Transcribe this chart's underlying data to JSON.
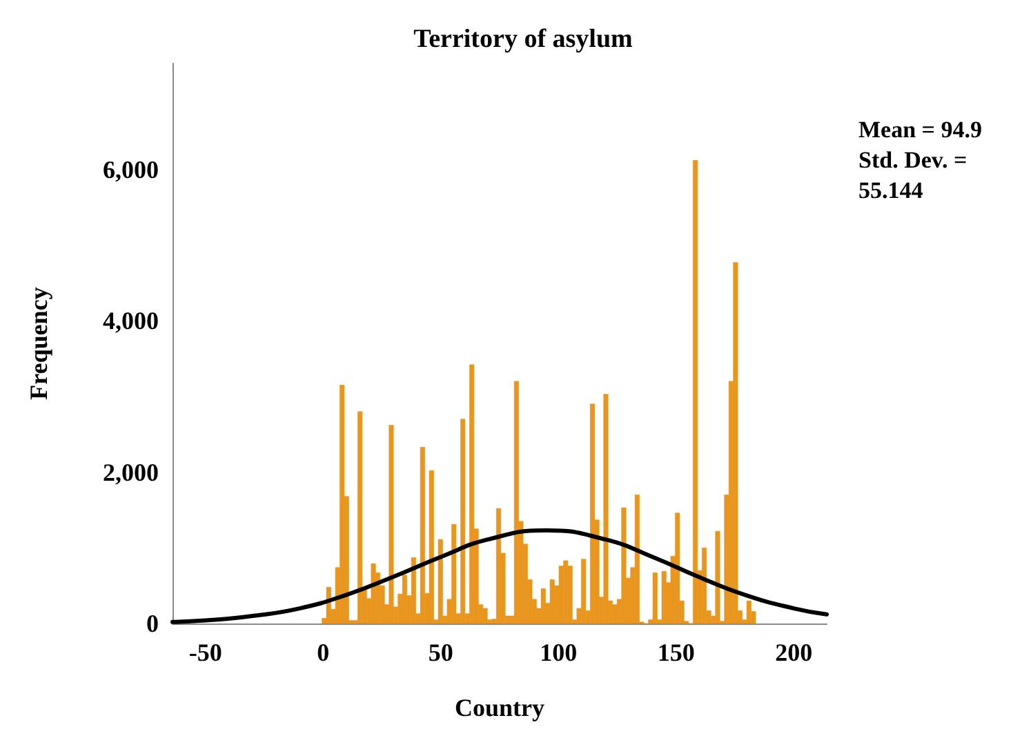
{
  "chart_data": {
    "type": "histogram",
    "title": "Territory of asylum",
    "xlabel": "Country",
    "ylabel": "Frequency",
    "bins": [
      -0.5,
      1.4,
      3.3,
      5.2,
      7.1,
      9,
      10.9,
      12.8,
      14.7,
      16.6,
      18.5,
      20.4,
      22.3,
      24.2,
      26.1,
      28,
      29.9,
      31.8,
      33.7,
      35.6,
      37.5,
      39.4,
      41.3,
      43.2,
      45.1,
      47,
      48.9,
      50.8,
      52.7,
      54.6,
      56.5,
      58.4,
      60.3,
      62.2,
      64.1,
      66,
      67.9,
      69.8,
      71.7,
      73.6,
      75.5,
      77.4,
      79.3,
      81.2,
      83.1,
      85,
      86.9,
      88.8,
      90.7,
      92.6,
      94.5,
      96.4,
      98.3,
      100.2,
      102.1,
      104,
      105.9,
      107.8,
      109.7,
      111.6,
      113.5,
      115.4,
      117.3,
      119.2,
      121.1,
      123,
      124.9,
      126.8,
      128.7,
      130.6,
      132.5,
      134.4,
      136.3,
      138.2,
      140.1,
      142,
      143.9,
      145.8,
      147.7,
      149.6,
      151.5,
      153.4,
      155.3,
      157.2,
      159.1,
      161,
      162.9,
      164.8,
      166.7,
      168.6,
      170.5,
      172.4,
      174.3,
      176.2,
      178.1,
      180,
      181.9,
      183.8
    ],
    "values": [
      70,
      480,
      190,
      740,
      3150,
      1680,
      40,
      40,
      2800,
      470,
      330,
      790,
      670,
      500,
      250,
      2620,
      220,
      390,
      640,
      370,
      870,
      130,
      2330,
      400,
      2020,
      50,
      1110,
      100,
      320,
      1310,
      130,
      2700,
      130,
      3420,
      1250,
      250,
      200,
      50,
      60,
      1520,
      930,
      100,
      100,
      3200,
      1350,
      1050,
      580,
      320,
      200,
      460,
      270,
      580,
      500,
      760,
      830,
      760,
      50,
      200,
      850,
      170,
      2900,
      1370,
      350,
      3030,
      300,
      250,
      320,
      1530,
      600,
      740,
      1700,
      20,
      0,
      50,
      670,
      50,
      690,
      540,
      890,
      1460,
      300,
      30,
      0,
      6120,
      700,
      1000,
      170,
      100,
      1220,
      30,
      1700,
      3200,
      4770,
      170,
      50,
      300,
      160
    ],
    "color": "#e8961e",
    "series": [
      {
        "type": "line",
        "color": "#000000",
        "x": [
          -64,
          -50,
          -30,
          -10,
          10,
          30,
          50,
          70,
          95,
          120,
          140,
          160,
          180,
          200,
          214
        ],
        "values": [
          20,
          40,
          100,
          200,
          380,
          620,
          880,
          1110,
          1230,
          1110,
          880,
          610,
          370,
          200,
          120
        ]
      }
    ],
    "xlim": [
      -64,
      214
    ],
    "xticks": [
      -50,
      0,
      50,
      100,
      150,
      200
    ],
    "ylim": [
      0,
      7400
    ],
    "yticks": [
      0,
      {
        "value": 2000,
        "label": "2,000"
      },
      {
        "value": 4000,
        "label": "4,000"
      },
      {
        "value": 6000,
        "label": "6,000"
      }
    ],
    "annotations": [
      "Mean = 94.9",
      "Std. Dev. = 55.144"
    ],
    "grid": false,
    "marker": "none",
    "line_style": "solid"
  }
}
